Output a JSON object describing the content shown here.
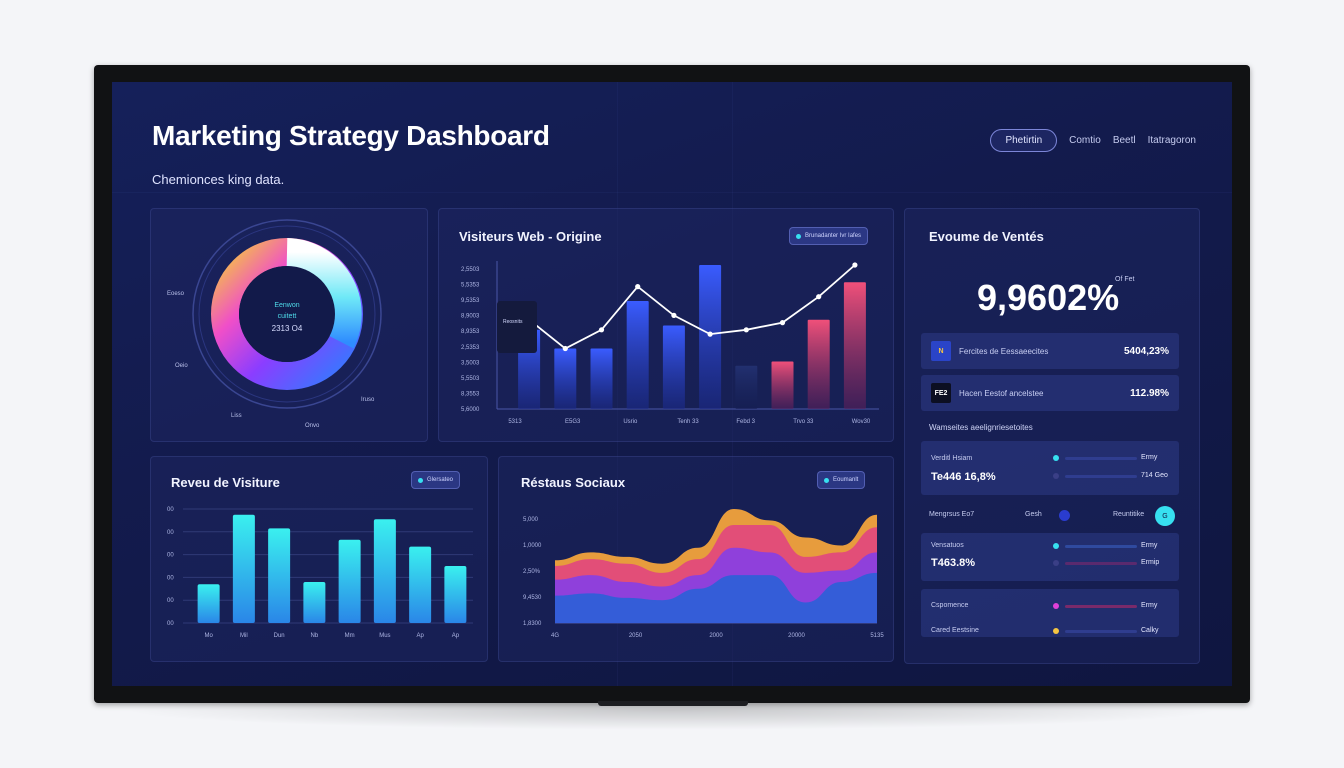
{
  "dashboard": {
    "title": "Marketing Strategy Dashboard",
    "subtitle": "Chemionces king data.",
    "nav": {
      "active": "Phetirtin",
      "links": [
        "Comtio",
        "Beetl",
        "Itatragoron"
      ]
    }
  },
  "donut": {
    "center_lines": [
      "Eenwon",
      "cuitett",
      "2313 O4"
    ],
    "outer_labels": [
      "Eoeso",
      "Oeio",
      "Liss",
      "Onvo",
      "Iruso"
    ],
    "colors": [
      "#f5c542",
      "#e8fbff",
      "#3ad6f0",
      "#2f7dff",
      "#8b3dff",
      "#f03ec9"
    ]
  },
  "visitors_web": {
    "title": "Visiteurs Web - Origine",
    "pill": "Brunadanter Ivr Iafes",
    "tooltip": "Reosnits",
    "chart_data": {
      "type": "bar",
      "title": "Visiteurs Web - Origine",
      "y_ticks": [
        "2,5503",
        "5,5353",
        "9,5353",
        "8,9003",
        "8,9353",
        "2,5353",
        "3,5003",
        "5,5503",
        "8,3553",
        "5,6000"
      ],
      "x_ticks": [
        "5313",
        "E5G3",
        "Usrio",
        "Tenh 33",
        "Febd 3",
        "Trvo 33",
        "Wov30"
      ],
      "bars": [
        0.55,
        0.42,
        0.42,
        0.75,
        0.58,
        1.0,
        0.3,
        0.33,
        0.62,
        0.88
      ],
      "bar_colors": [
        "blue",
        "blue",
        "blue",
        "blue",
        "blue",
        "blue",
        "dark",
        "pink",
        "pink",
        "pink"
      ],
      "line": [
        0.62,
        0.42,
        0.55,
        0.85,
        0.65,
        0.52,
        0.55,
        0.6,
        0.78,
        1.0
      ]
    }
  },
  "sales_volume": {
    "title": "Evoume de Ventés",
    "value": "9,9602%",
    "note": "Of Fet",
    "rows": [
      {
        "icon": "N",
        "label": "Fercites de Eessaeecites",
        "value": "5404,23%"
      },
      {
        "icon": "FE2",
        "label": "Hacen Eestof ancelstee",
        "value": "112.98%"
      }
    ],
    "section_title": "Wamseites aeelignriesetoites",
    "box1": {
      "label": "Verditl Hsiam",
      "value": "Te446 16,8%",
      "right1": "Ermy",
      "right2": "714 Geo"
    },
    "mid_row": {
      "left": "Mengrsus Eo7",
      "center": "Gesh",
      "right": "Reuntitike",
      "badge": "G"
    },
    "box2": {
      "label": "Vensatuos",
      "value": "T463.8%",
      "right1": "Ermy",
      "right2": "Ermip"
    },
    "box3": {
      "row1_label": "Cspomence",
      "row1_right": "Ermy",
      "row2_label": "Cared Eestsine",
      "row2_right": "Calky"
    }
  },
  "revenue_visits": {
    "title": "Reveu de Visiture",
    "pill": "Glersateo",
    "chart_data": {
      "type": "bar",
      "title": "Reveu de Visiture",
      "y_ticks": [
        "00",
        "00",
        "00",
        "00",
        "00",
        "00"
      ],
      "categories": [
        "Mo",
        "Mil",
        "Dun",
        "Nb",
        "Mm",
        "Mus",
        "Ap",
        "Ap"
      ],
      "values": [
        0.34,
        0.95,
        0.83,
        0.36,
        0.73,
        0.91,
        0.67,
        0.5
      ]
    }
  },
  "social": {
    "title": "Réstaus Sociaux",
    "pill": "Eoumanlt",
    "chart_data": {
      "type": "area",
      "title": "Réstaus Sociaux",
      "y_ticks": [
        "5,000",
        "1,0000",
        "2,50%",
        "9,4530",
        "1,8300"
      ],
      "x_ticks": [
        "4G",
        "2050",
        "2000",
        "20000",
        "5135"
      ],
      "series": [
        {
          "color": "#f2a33c",
          "values": [
            0.55,
            0.62,
            0.58,
            0.52,
            0.66,
            1.0,
            0.9,
            0.75,
            0.68,
            0.95
          ]
        },
        {
          "color": "#e24a7b",
          "values": [
            0.5,
            0.56,
            0.52,
            0.44,
            0.56,
            0.86,
            0.86,
            0.58,
            0.62,
            0.84
          ]
        },
        {
          "color": "#8a3fe0",
          "values": [
            0.38,
            0.42,
            0.36,
            0.32,
            0.42,
            0.66,
            0.62,
            0.44,
            0.46,
            0.62
          ]
        },
        {
          "color": "#2f5fd8",
          "values": [
            0.24,
            0.26,
            0.22,
            0.2,
            0.3,
            0.42,
            0.42,
            0.18,
            0.36,
            0.44
          ]
        }
      ]
    }
  }
}
